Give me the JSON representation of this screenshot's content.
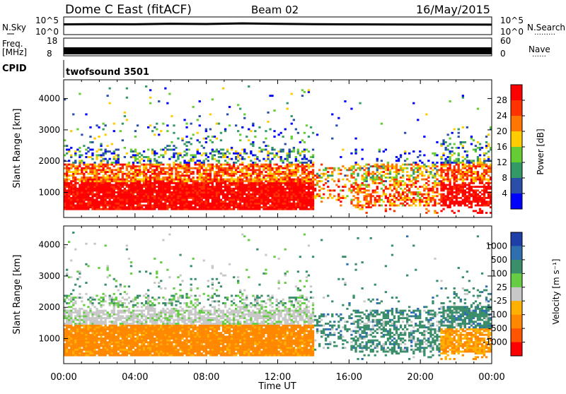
{
  "header": {
    "station": "Dome C East (fitACF)",
    "beam": "Beam 02",
    "date": "16/May/2015"
  },
  "nsky_panel": {
    "left_label": "N.Sky",
    "right_label": "N.Search",
    "right_marker": "………",
    "left_ticks": [
      "10^5",
      "10^0"
    ],
    "right_ticks": [
      "10^5",
      "10^0"
    ]
  },
  "freq_panel": {
    "left_label_1": "Freq.",
    "left_label_2": "[MHz]",
    "right_label": "Nave",
    "right_marker": "……",
    "left_ticks": [
      "18",
      "8"
    ],
    "right_ticks": [
      "60",
      "0"
    ]
  },
  "cpid": {
    "label": "CPID",
    "value": "twofsound  3501"
  },
  "power_colorbar": {
    "label": "Power [dB]",
    "ticks": [
      "28",
      "24",
      "20",
      "16",
      "12",
      "8",
      "4"
    ],
    "colors": [
      "#ff0000",
      "#ff3300",
      "#ff7700",
      "#ffcc00",
      "#66cc33",
      "#339966",
      "#2a4fa8",
      "#0000ff"
    ]
  },
  "velocity_colorbar": {
    "label": "Velocity [m s⁻¹]",
    "ticks": [
      "1000",
      "500",
      "100",
      "25",
      "-25",
      "-100",
      "-500",
      "-1000"
    ],
    "colors": [
      "#1f3fa8",
      "#2f6fb0",
      "#3a8f6a",
      "#66cc44",
      "#c8c8c8",
      "#ffb000",
      "#ff8800",
      "#ff5500",
      "#ff0000"
    ]
  },
  "axes": {
    "xlabel": "Time UT",
    "ylabel": "Slant Range [km]"
  },
  "chart_data": [
    {
      "type": "line",
      "title": "N.Sky / N.Search",
      "x_range": [
        0,
        24
      ],
      "y_scale": "log",
      "ylim": [
        1,
        100000
      ],
      "x": [
        0,
        2,
        4,
        6,
        8,
        10,
        12,
        14,
        16,
        18,
        20,
        22,
        24
      ],
      "series": [
        {
          "values": [
            800,
            900,
            850,
            1200,
            1000,
            1500,
            1100,
            900,
            800,
            750,
            700,
            700,
            650
          ]
        }
      ]
    },
    {
      "type": "area",
      "title": "Freq. / Nave",
      "x_range": [
        0,
        24
      ],
      "ylim_left": [
        8,
        18
      ],
      "ylim_right": [
        0,
        60
      ],
      "series": [
        {
          "values": [
            10,
            10,
            10,
            10,
            10,
            10,
            10,
            10,
            10,
            10,
            10,
            10,
            10
          ]
        }
      ]
    },
    {
      "type": "heatmap",
      "title": "Power [dB]",
      "x_range": [
        0,
        24
      ],
      "ylim": [
        200,
        4600
      ],
      "xticks": [
        "00:00",
        "04:00",
        "08:00",
        "12:00",
        "16:00",
        "20:00",
        "00:00"
      ],
      "yticks": [
        "1000",
        "2000",
        "3000",
        "4000"
      ],
      "value_levels": [
        4,
        8,
        12,
        16,
        20,
        24,
        28
      ]
    },
    {
      "type": "heatmap",
      "title": "Velocity [m s-1]",
      "x_range": [
        0,
        24
      ],
      "ylim": [
        200,
        4600
      ],
      "xticks": [
        "00:00",
        "04:00",
        "08:00",
        "12:00",
        "16:00",
        "20:00",
        "00:00"
      ],
      "yticks": [
        "1000",
        "2000",
        "3000",
        "4000"
      ],
      "value_levels": [
        -1000,
        -500,
        -100,
        -25,
        25,
        100,
        500,
        1000
      ]
    }
  ]
}
